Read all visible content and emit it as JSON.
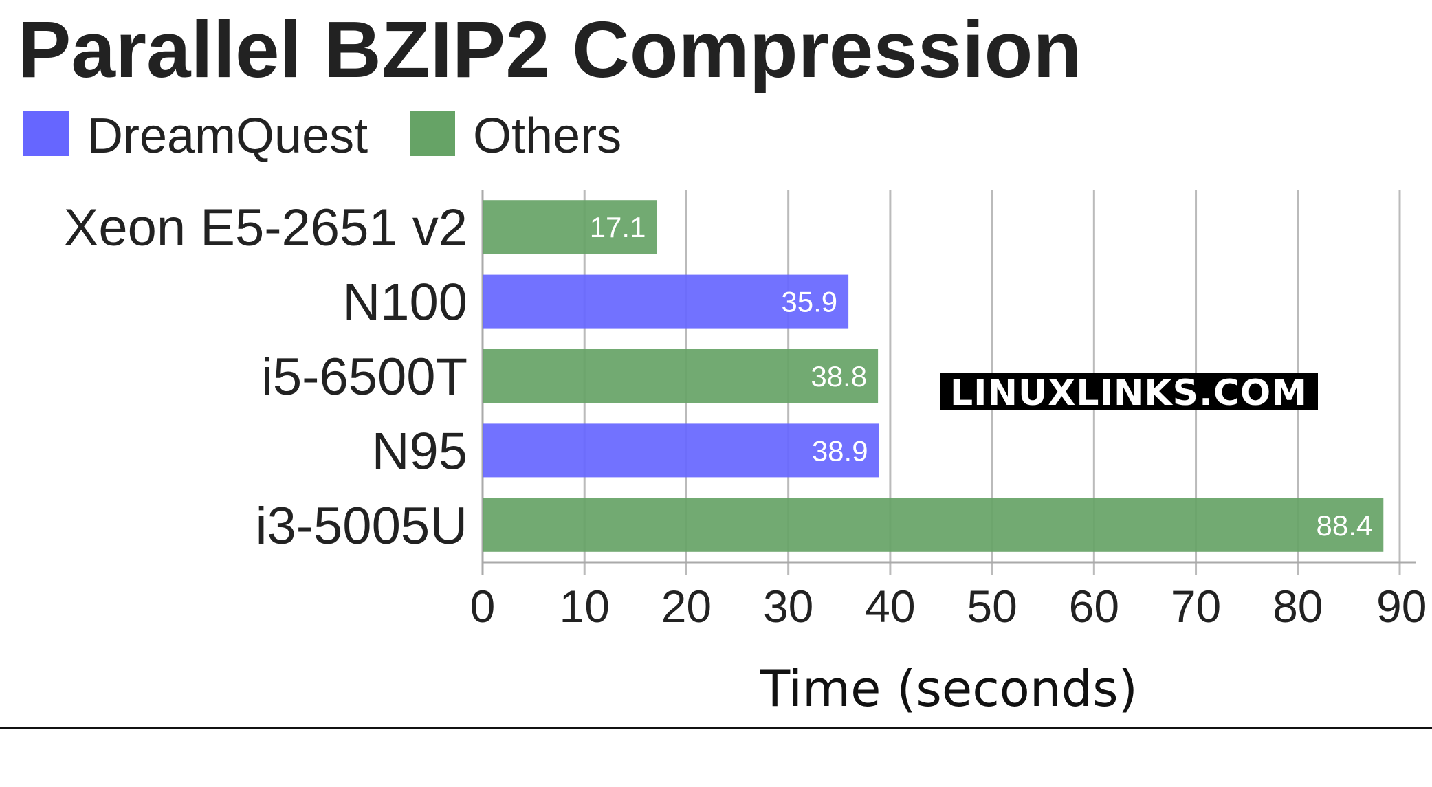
{
  "colors": {
    "dreamquest": "#6666ff",
    "others": "#66a366",
    "grid": "#bbbbbb",
    "text": "#222222"
  },
  "watermark": "LINUXLINKS.COM",
  "chart_data": {
    "type": "bar",
    "orientation": "horizontal",
    "title": "Parallel BZIP2 Compression",
    "xlabel": "Time (seconds)",
    "ylabel": "",
    "xlim": [
      0,
      90
    ],
    "xticks": [
      0,
      10,
      20,
      30,
      40,
      50,
      60,
      70,
      80,
      90
    ],
    "grid": "vertical",
    "legend": {
      "placement": "top-left",
      "entries": [
        {
          "name": "DreamQuest",
          "color": "#6666ff"
        },
        {
          "name": "Others",
          "color": "#66a366"
        }
      ]
    },
    "categories": [
      "Xeon E5-2651 v2",
      "N100",
      "i5-6500T",
      "N95",
      "i3-5005U"
    ],
    "values": [
      17.1,
      35.9,
      38.8,
      38.9,
      88.4
    ],
    "groups": [
      "Others",
      "DreamQuest",
      "Others",
      "DreamQuest",
      "Others"
    ],
    "value_labels": [
      "17.1",
      "35.9",
      "38.8",
      "38.9",
      "88.4"
    ]
  }
}
